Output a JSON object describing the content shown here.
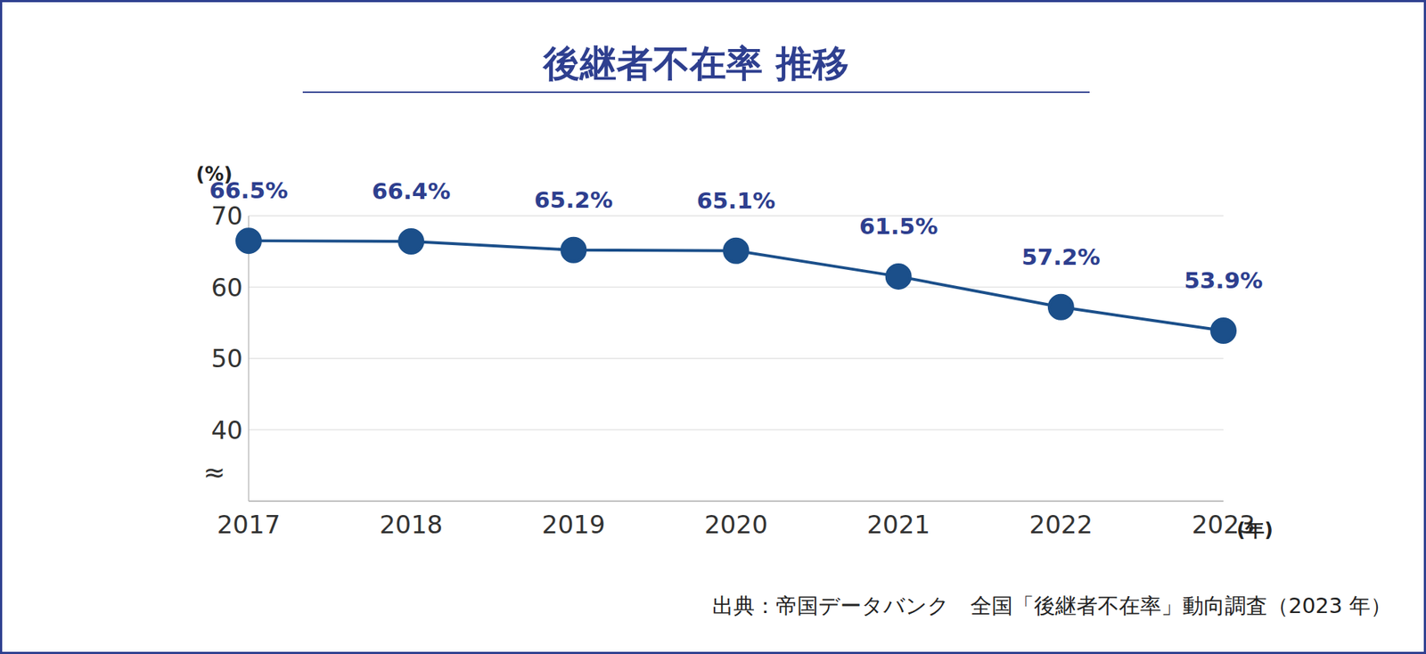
{
  "chart_data": {
    "type": "line",
    "title": "後継者不在率 推移",
    "categories": [
      "2017",
      "2018",
      "2019",
      "2020",
      "2021",
      "2022",
      "2023"
    ],
    "values": [
      66.5,
      66.4,
      65.2,
      65.1,
      61.5,
      57.2,
      53.9
    ],
    "value_labels": [
      "66.5%",
      "66.4%",
      "65.2%",
      "65.1%",
      "61.5%",
      "57.2%",
      "53.9%"
    ],
    "y_label": "(%)",
    "x_label": "(年)",
    "axis_break_symbol": "≈",
    "source": "出典：帝国データバンク　全国「後継者不在率」動向調査（2023 年）",
    "color": "#1b4f8a",
    "marker": "circle",
    "line_style": "solid",
    "ylim": [
      30,
      70
    ],
    "yticks": [
      40,
      50,
      60,
      70
    ],
    "grid": true,
    "data_labels": true
  }
}
